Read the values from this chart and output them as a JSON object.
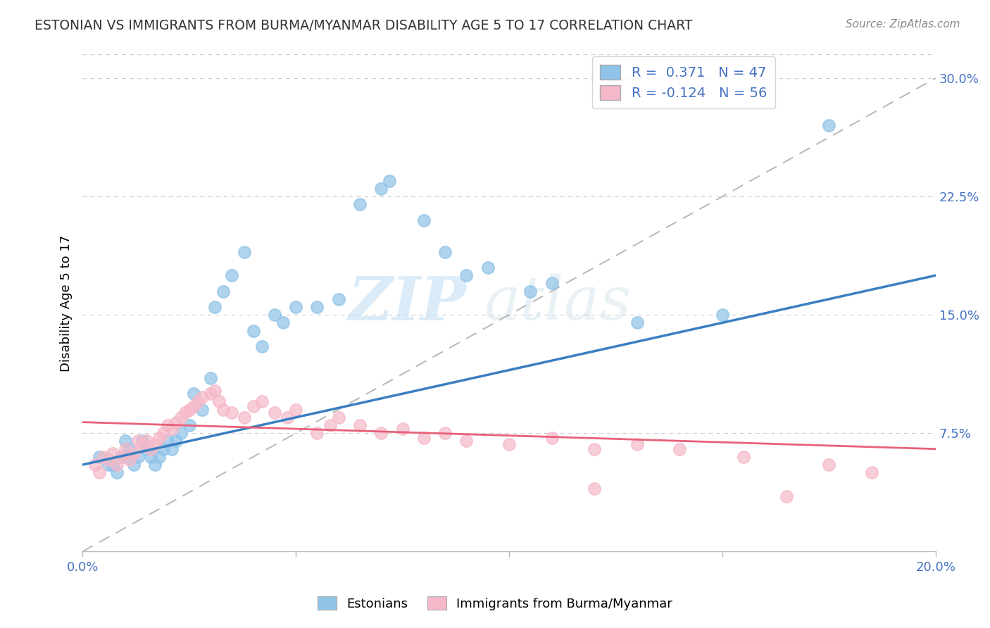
{
  "title": "ESTONIAN VS IMMIGRANTS FROM BURMA/MYANMAR DISABILITY AGE 5 TO 17 CORRELATION CHART",
  "source": "Source: ZipAtlas.com",
  "ylabel": "Disability Age 5 to 17",
  "xlim": [
    0.0,
    0.2
  ],
  "ylim": [
    0.0,
    0.315
  ],
  "xticks": [
    0.0,
    0.05,
    0.1,
    0.15,
    0.2
  ],
  "yticks_right": [
    0.075,
    0.15,
    0.225,
    0.3
  ],
  "ytick_labels_right": [
    "7.5%",
    "15.0%",
    "22.5%",
    "30.0%"
  ],
  "xtick_labels": [
    "0.0%",
    "",
    "",
    "",
    "20.0%"
  ],
  "blue_color": "#8fc3e8",
  "pink_color": "#f5b8c8",
  "blue_line_color": "#3a7fc1",
  "pink_line_color": "#e8607a",
  "blue_r": 0.371,
  "blue_n": 47,
  "pink_r": -0.124,
  "pink_n": 56,
  "legend_label_blue": "Estonians",
  "legend_label_pink": "Immigrants from Burma/Myanmar",
  "watermark_zip": "ZIP",
  "watermark_atlas": "atlas",
  "blue_scatter_x": [
    0.004,
    0.006,
    0.007,
    0.008,
    0.009,
    0.01,
    0.01,
    0.011,
    0.012,
    0.013,
    0.014,
    0.015,
    0.016,
    0.017,
    0.018,
    0.019,
    0.02,
    0.021,
    0.022,
    0.023,
    0.025,
    0.026,
    0.028,
    0.03,
    0.031,
    0.033,
    0.035,
    0.038,
    0.04,
    0.042,
    0.045,
    0.047,
    0.05,
    0.055,
    0.06,
    0.065,
    0.07,
    0.072,
    0.08,
    0.085,
    0.09,
    0.095,
    0.105,
    0.11,
    0.13,
    0.15,
    0.175
  ],
  "blue_scatter_y": [
    0.06,
    0.055,
    0.055,
    0.05,
    0.06,
    0.07,
    0.06,
    0.065,
    0.055,
    0.06,
    0.07,
    0.065,
    0.06,
    0.055,
    0.06,
    0.065,
    0.07,
    0.065,
    0.07,
    0.075,
    0.08,
    0.1,
    0.09,
    0.11,
    0.155,
    0.165,
    0.175,
    0.19,
    0.14,
    0.13,
    0.15,
    0.145,
    0.155,
    0.155,
    0.16,
    0.22,
    0.23,
    0.235,
    0.21,
    0.19,
    0.175,
    0.18,
    0.165,
    0.17,
    0.145,
    0.15,
    0.27
  ],
  "pink_scatter_x": [
    0.003,
    0.004,
    0.005,
    0.006,
    0.007,
    0.008,
    0.009,
    0.01,
    0.011,
    0.012,
    0.013,
    0.014,
    0.015,
    0.016,
    0.017,
    0.018,
    0.019,
    0.02,
    0.021,
    0.022,
    0.023,
    0.024,
    0.025,
    0.026,
    0.027,
    0.028,
    0.03,
    0.031,
    0.032,
    0.033,
    0.035,
    0.038,
    0.04,
    0.042,
    0.045,
    0.048,
    0.05,
    0.055,
    0.058,
    0.06,
    0.065,
    0.07,
    0.075,
    0.08,
    0.085,
    0.09,
    0.1,
    0.11,
    0.12,
    0.13,
    0.14,
    0.155,
    0.175,
    0.185,
    0.12,
    0.165
  ],
  "pink_scatter_y": [
    0.055,
    0.05,
    0.06,
    0.058,
    0.062,
    0.055,
    0.06,
    0.065,
    0.058,
    0.062,
    0.07,
    0.068,
    0.07,
    0.065,
    0.068,
    0.072,
    0.075,
    0.08,
    0.078,
    0.082,
    0.085,
    0.088,
    0.09,
    0.092,
    0.095,
    0.098,
    0.1,
    0.102,
    0.095,
    0.09,
    0.088,
    0.085,
    0.092,
    0.095,
    0.088,
    0.085,
    0.09,
    0.075,
    0.08,
    0.085,
    0.08,
    0.075,
    0.078,
    0.072,
    0.075,
    0.07,
    0.068,
    0.072,
    0.065,
    0.068,
    0.065,
    0.06,
    0.055,
    0.05,
    0.04,
    0.035
  ],
  "blue_trend_x": [
    0.0,
    0.2
  ],
  "blue_trend_y": [
    0.055,
    0.175
  ],
  "pink_trend_x": [
    0.0,
    0.2
  ],
  "pink_trend_y": [
    0.082,
    0.065
  ]
}
